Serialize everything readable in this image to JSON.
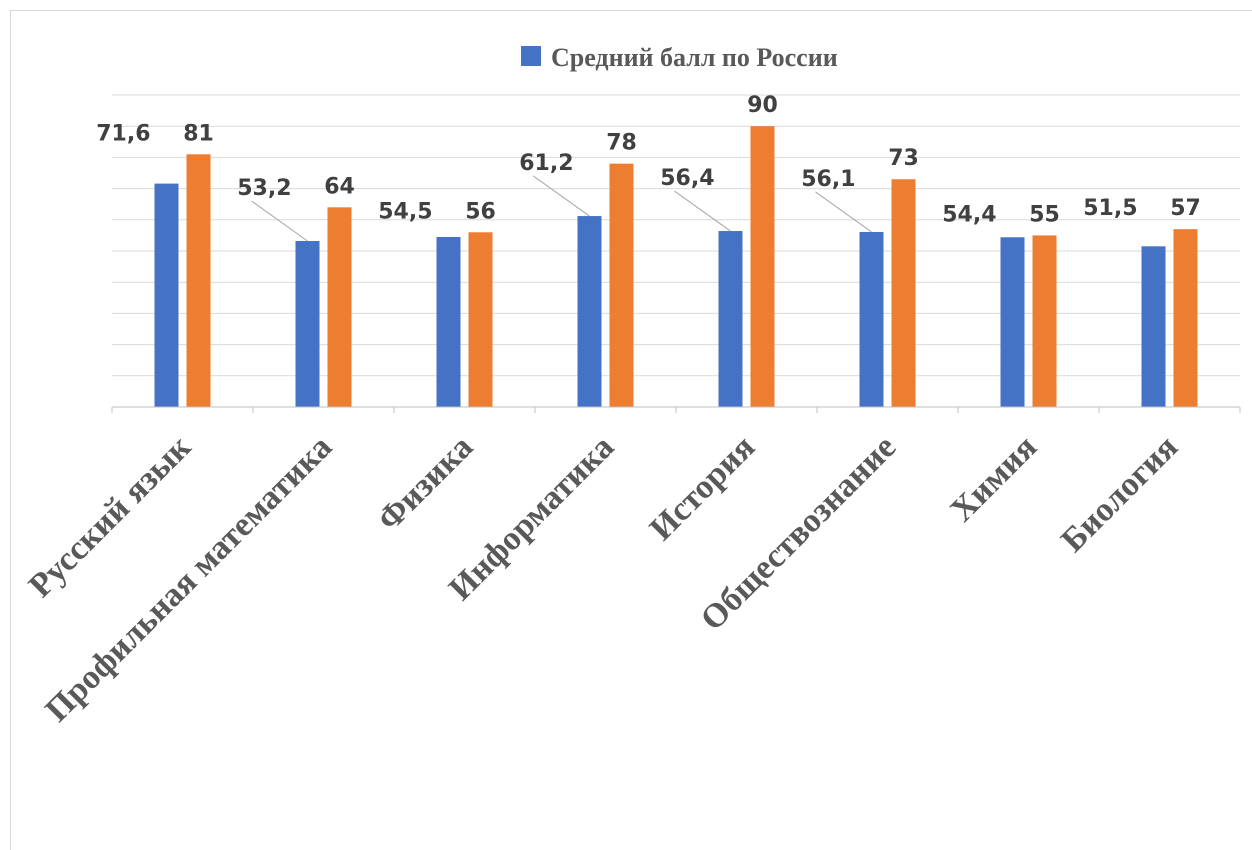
{
  "chart_data": {
    "type": "bar",
    "categories": [
      "Русский язык",
      "Профильная математика",
      "Физика",
      "Информатика",
      "История",
      "Обществознание",
      "Химия",
      "Биология"
    ],
    "series": [
      {
        "name": "Средний балл по России",
        "color": "#4472C4",
        "values": [
          71.6,
          53.2,
          54.5,
          61.2,
          56.4,
          56.1,
          54.4,
          51.5
        ],
        "labels": [
          "71,6",
          "53,2",
          "54,5",
          "61,2",
          "56,4",
          "56,1",
          "54,4",
          "51,5"
        ]
      },
      {
        "color": "#ED7D31",
        "values": [
          81,
          64,
          56,
          78,
          90,
          73,
          55,
          57
        ],
        "labels": [
          "81",
          "64",
          "56",
          "78",
          "90",
          "73",
          "55",
          "57"
        ]
      }
    ],
    "ylim": [
      0,
      100
    ],
    "gridlines": true,
    "legend_position": "top",
    "xlabel": "",
    "ylabel": ""
  }
}
